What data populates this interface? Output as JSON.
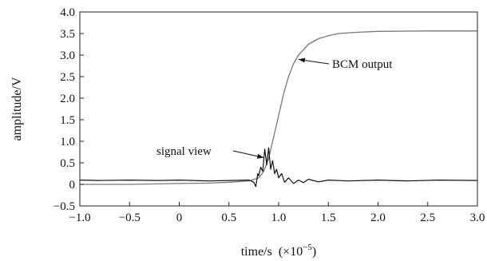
{
  "chart_data": {
    "type": "line",
    "title": "",
    "xlabel_main": "time/s",
    "xlabel_unit": "(×10",
    "xlabel_exp": "−5",
    "xlabel_close": ")",
    "ylabel": "amplitude/V",
    "xlim": [
      -1.0,
      3.0
    ],
    "ylim": [
      -0.5,
      4.0
    ],
    "xticks": [
      -1.0,
      -0.5,
      0,
      0.5,
      1.0,
      1.5,
      2.0,
      2.5,
      3.0
    ],
    "xtick_labels": [
      "−1.0",
      "−0.5",
      "0",
      "0.5",
      "1.0",
      "1.5",
      "2.0",
      "2.5",
      "3.0"
    ],
    "yticks": [
      -0.5,
      0,
      0.5,
      1.0,
      1.5,
      2.0,
      2.5,
      3.0,
      3.5,
      4.0
    ],
    "ytick_labels": [
      "−0.5",
      "0",
      "0.5",
      "1.0",
      "1.5",
      "2.0",
      "2.5",
      "3.0",
      "3.5",
      "4.0"
    ],
    "grid": false,
    "series": [
      {
        "name": "BCM output",
        "color": "#777777",
        "points": [
          [
            -1.0,
            0.0
          ],
          [
            -0.5,
            0.0
          ],
          [
            0.0,
            0.02
          ],
          [
            0.3,
            0.03
          ],
          [
            0.5,
            0.05
          ],
          [
            0.7,
            0.08
          ],
          [
            0.8,
            0.15
          ],
          [
            0.85,
            0.3
          ],
          [
            0.9,
            0.6
          ],
          [
            0.95,
            1.1
          ],
          [
            1.0,
            1.6
          ],
          [
            1.05,
            2.1
          ],
          [
            1.1,
            2.5
          ],
          [
            1.15,
            2.8
          ],
          [
            1.2,
            3.0
          ],
          [
            1.3,
            3.25
          ],
          [
            1.4,
            3.38
          ],
          [
            1.5,
            3.45
          ],
          [
            1.6,
            3.5
          ],
          [
            1.8,
            3.53
          ],
          [
            2.0,
            3.55
          ],
          [
            2.5,
            3.56
          ],
          [
            3.0,
            3.56
          ]
        ]
      },
      {
        "name": "signal view",
        "color": "#111111",
        "points": [
          [
            -1.0,
            0.1
          ],
          [
            -0.8,
            0.09
          ],
          [
            -0.5,
            0.1
          ],
          [
            -0.2,
            0.09
          ],
          [
            0.0,
            0.1
          ],
          [
            0.3,
            0.08
          ],
          [
            0.5,
            0.09
          ],
          [
            0.7,
            0.1
          ],
          [
            0.75,
            0.05
          ],
          [
            0.77,
            -0.05
          ],
          [
            0.79,
            0.25
          ],
          [
            0.8,
            0.2
          ],
          [
            0.82,
            0.4
          ],
          [
            0.84,
            0.3
          ],
          [
            0.86,
            0.82
          ],
          [
            0.88,
            0.45
          ],
          [
            0.9,
            0.85
          ],
          [
            0.92,
            0.35
          ],
          [
            0.94,
            0.55
          ],
          [
            0.96,
            0.25
          ],
          [
            0.98,
            0.35
          ],
          [
            1.0,
            0.15
          ],
          [
            1.03,
            0.25
          ],
          [
            1.06,
            0.05
          ],
          [
            1.1,
            0.15
          ],
          [
            1.15,
            0.02
          ],
          [
            1.2,
            0.1
          ],
          [
            1.25,
            0.04
          ],
          [
            1.3,
            0.12
          ],
          [
            1.4,
            0.06
          ],
          [
            1.5,
            0.1
          ],
          [
            1.7,
            0.08
          ],
          [
            2.0,
            0.1
          ],
          [
            2.3,
            0.08
          ],
          [
            2.6,
            0.1
          ],
          [
            3.0,
            0.09
          ]
        ]
      }
    ],
    "annotations": [
      {
        "text": "BCM output",
        "arrow_to": [
          1.2,
          2.9
        ]
      },
      {
        "text": "signal view",
        "arrow_to": [
          0.85,
          0.62
        ]
      }
    ]
  }
}
